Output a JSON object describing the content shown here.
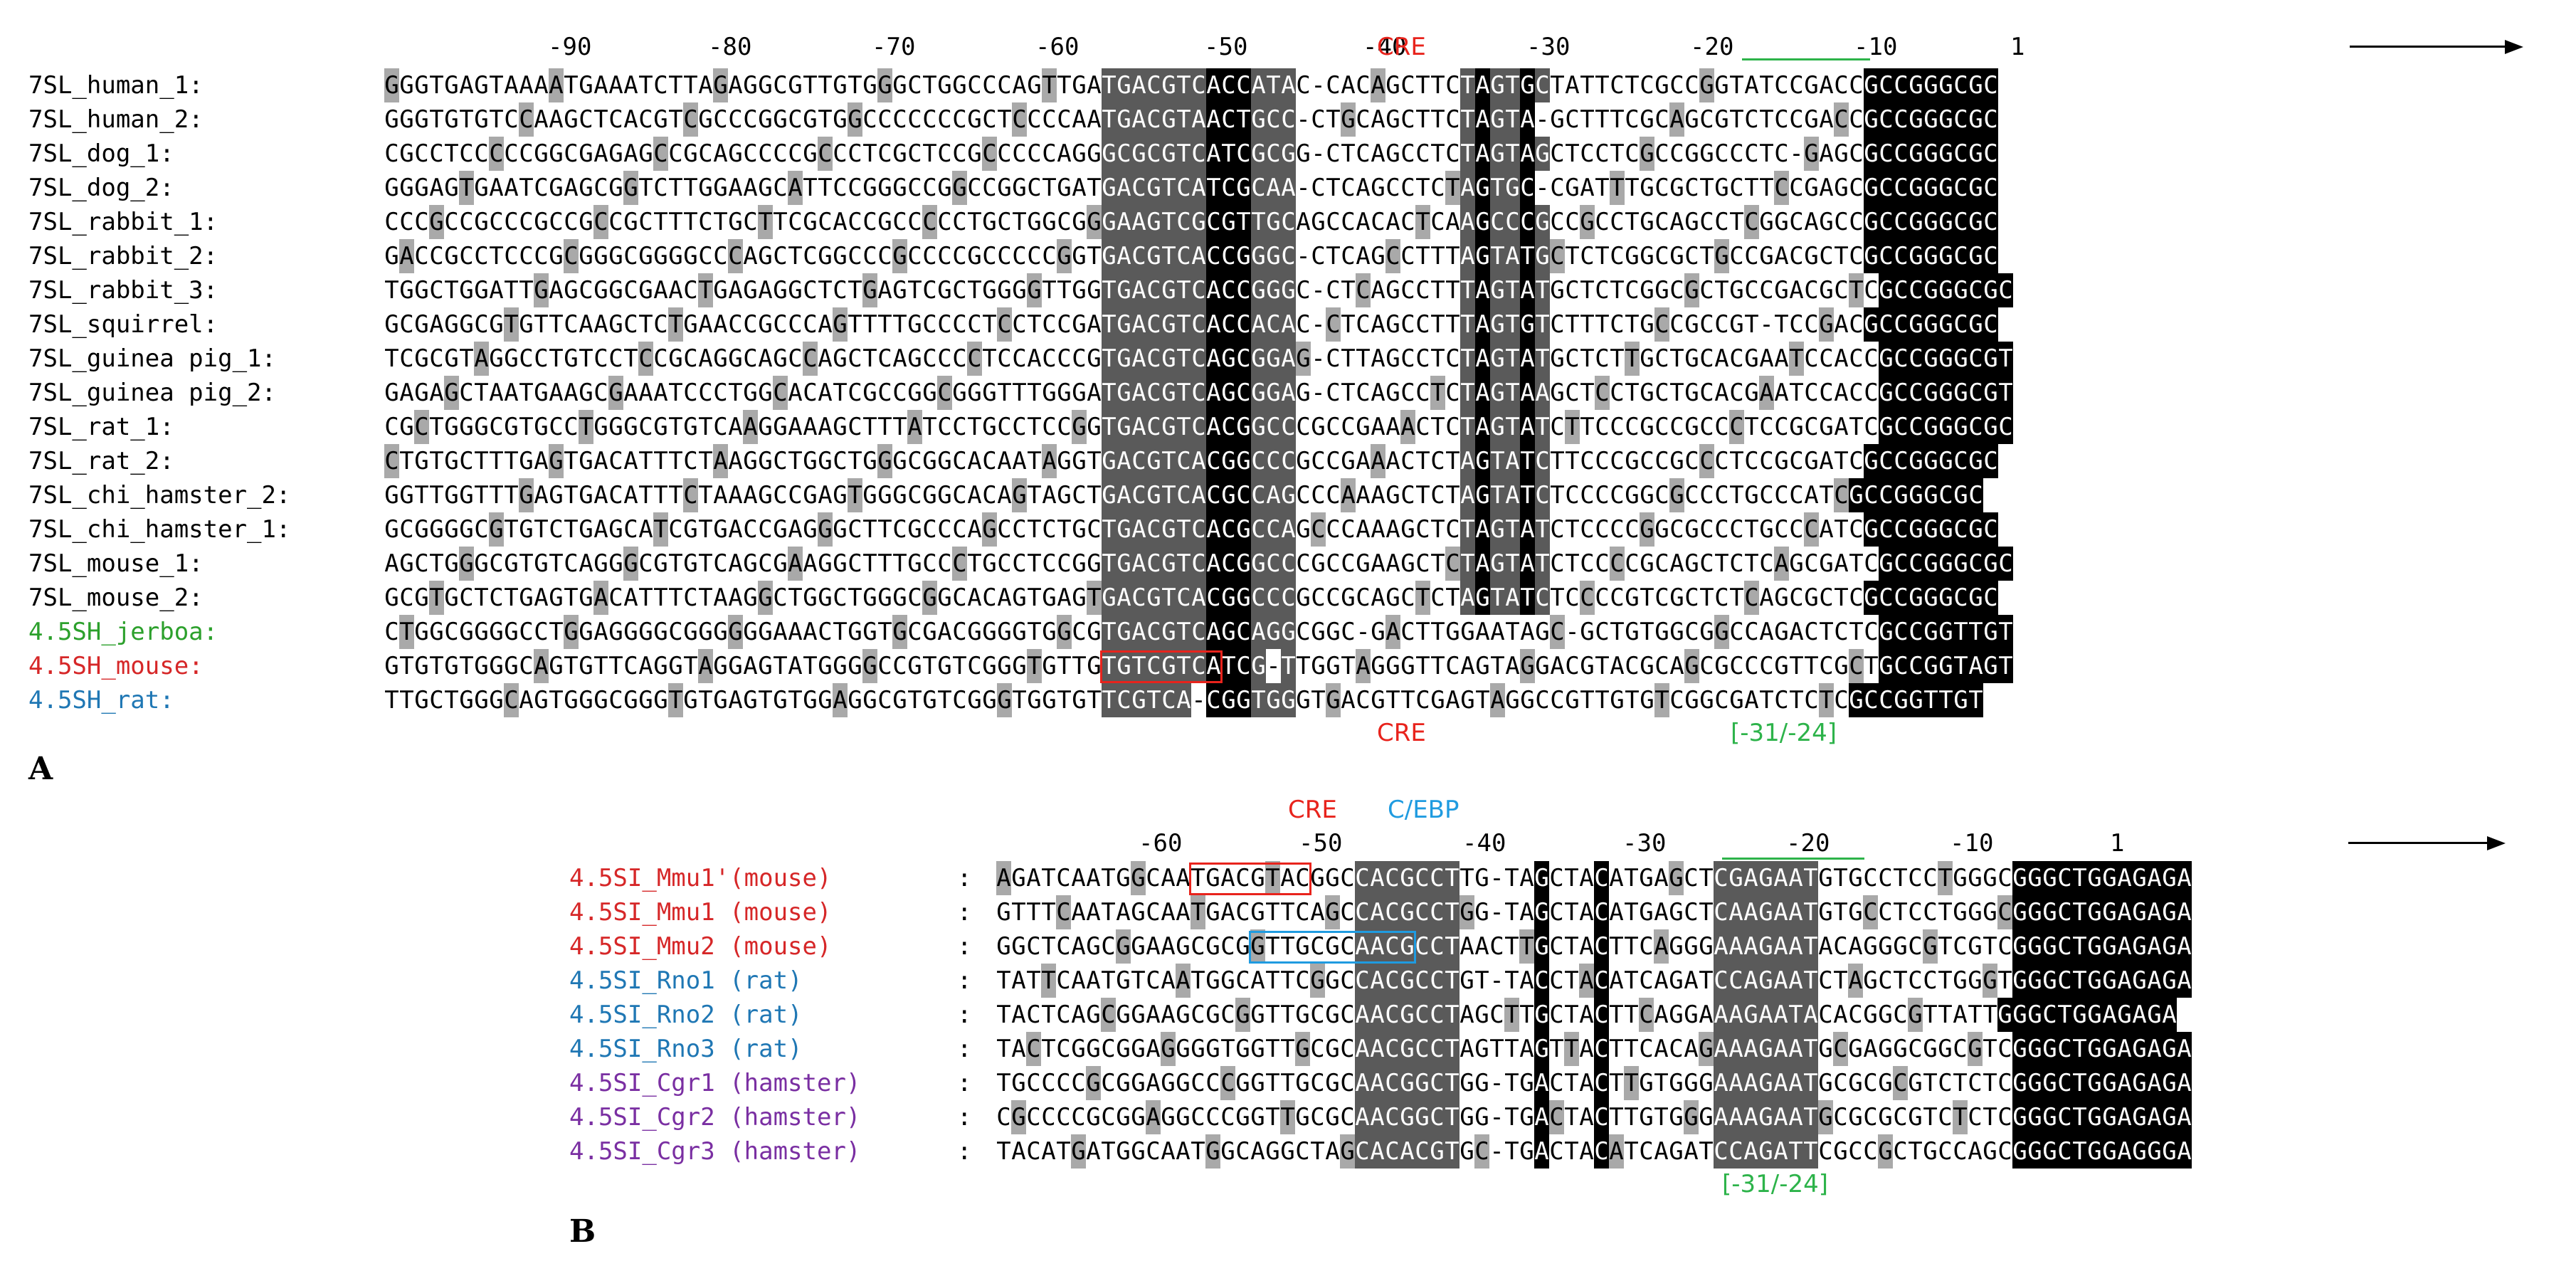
{
  "colors": {
    "human": "#000000",
    "jerboa": "#2ca02c",
    "mouse": "#d62728",
    "rat": "#1f77b4",
    "hamster": "#7a2fa2",
    "cre": "#e8231c",
    "cebp": "#1f9be0",
    "box_green": "#2db34a"
  },
  "panelA": {
    "letter": "A",
    "ticks": [
      "-90",
      "-80",
      "-70",
      "-60",
      "-50",
      "-40",
      "-30",
      "-20",
      "-10",
      "1"
    ],
    "cre_top": "CRE",
    "cre_bottom": "CRE",
    "bracket": "[-31/-24]",
    "rows": [
      {
        "label": "7SL_human_1:",
        "color": "human",
        "seq": "GGGTGAGTAAAATGAAATCTTAGAGGCGTTGTGGGCTGGCCCAGTTGATGACGTCACCATAC-CACAGCTTCTAGTGCTATTCTCGCCGGTATCCGACCGCCGGGCGC"
      },
      {
        "label": "7SL_human_2:",
        "color": "human",
        "seq": "GGGTGTGTCCAAGCTCACGTCGCCCGGCGTGGCCCCCCCGCTCCCCAATGACGTAACTGCC-CTGCAGCTTCTAGTA-GCTTTCGCAGCGTCTCCGACCGCCGGGCGC"
      },
      {
        "label": "7SL_dog_1:",
        "color": "human",
        "seq": "CGCCTCCCCCGGCGAGAGCCGCAGCCCCGCCCTCGCTCCGCCCCCAGGGCGCGTCATCGCGG-CTCAGCCTCTAGTAGCTCCTCGCCGGCCCTC-GAGCGCCGGGCGC"
      },
      {
        "label": "7SL_dog_2:",
        "color": "human",
        "seq": "GGGAGTGAATCGAGCGGTCTTGGAAGCATTCCGGGCCGGCCGGCTGATGACGTCATCGCAA-CTCAGCCTCTAGTGC-CGATTTGCGCTGCTTCCGAGCGCCGGGCGC"
      },
      {
        "label": "7SL_rabbit_1:",
        "color": "human",
        "seq": "CCCGCCGCCCGCCGCCGCTTTCTGCTTCGCACCGCCCCCTGCTGGCGGGAAGTCGCGTTGCAGCCACACTCAAGCCCGCCGCCTGCAGCCTCGGCAGCCGCCGGGCGC"
      },
      {
        "label": "7SL_rabbit_2:",
        "color": "human",
        "seq": "GACCGCCTCCCGCGGGCGGGGCCCAGCTCGGCCCGCCCCGCCCCCGGTGACGTCACCGGGC-CTCAGCCTTTAGTATGCTCTCGGCGCTGCCGACGCTCGCCGGGCGC"
      },
      {
        "label": "7SL_rabbit_3:",
        "color": "human",
        "seq": "TGGCTGGATTGAGCGGCGAACTGAGAGGCTCTGAGTCGCTGGGGTTGGTGACGTCACCGGGC-CTCAGCCTTTAGTATGCTCTCGGCGCTGCCGACGCTCGCCGGGCGC"
      },
      {
        "label": "7SL_squirrel:",
        "color": "human",
        "seq": "GCGAGGCGTGTTCAAGCTCTGAACCGCCCAGTTTTGCCCCTCCTCCGATGACGTCACCACAC-CTCAGCCTTTAGTGTCTTTCTGCCGCCGT-TCCGACGCCGGGCGC"
      },
      {
        "label": "7SL_guinea pig_1:",
        "color": "human",
        "seq": "TCGCGTAGGCCTGTCCTCCGCAGGCAGCCAGCTCAGCCCCTCCACCCGTGACGTCAGCGGAG-CTTAGCCTCTAGTATGCTCTTGCTGCACGAATCCACCGCCGGGCGT"
      },
      {
        "label": "7SL_guinea pig_2:",
        "color": "human",
        "seq": "GAGAGCTAATGAAGCGAAATCCCTGGCACATCGCCGGCGGGTTTGGGATGACGTCAGCGGAG-CTCAGCCTCTAGTAAGCTCCTGCTGCACGAATCCACCGCCGGGCGT"
      },
      {
        "label": "7SL_rat_1:",
        "color": "human",
        "seq": "CGCTGGGCGTGCCTGGGCGTGTCAAGGAAAGCTTTATCCTGCCTCCGGTGACGTCACGGCCCGCCGAAACTCTAGTATCTTCCCGCCGCCCTCCGCGATCGCCGGGCGC"
      },
      {
        "label": "7SL_rat_2:",
        "color": "human",
        "seq": "CTGTGCTTTGAGTGACATTTCTAAGGCTGGCTGGGCGGCACAATAGGTGACGTCACGGCCCGCCGAAACTCTAGTATCTTCCCGCCGCCCTCCGCGATCGCCGGGCGC"
      },
      {
        "label": "7SL_chi_hamster_2:",
        "color": "human",
        "seq": "GGTTGGTTTGAGTGACATTTCTAAAGCCGAGTGGGCGGCACAGTAGCTGACGTCACGCCAGCCCAAAGCTCTAGTATCTCCCCGGCGCCCTGCCCATCGCCGGGCGC"
      },
      {
        "label": "7SL_chi_hamster_1:",
        "color": "human",
        "seq": "GCGGGGCGTGTCTGAGCATCGTGACCGAGGGCTTCGCCCAGCCTCTGCTGACGTCACGCCAGCCCAAAGCTCTAGTATCTCCCCGGCGCCCTGCCCATCGCCGGGCGC"
      },
      {
        "label": "7SL_mouse_1:",
        "color": "human",
        "seq": "AGCTGGGCGTGTCAGGGCGTGTCAGCGAAGGCTTTGCCCTGCCTCCGGTGACGTCACGGCCCGCCGAAGCTCTAGTATCTCCCCGCAGCTCTCAGCGATCGCCGGGCGC"
      },
      {
        "label": "7SL_mouse_2:",
        "color": "human",
        "seq": "GCGTGCTCTGAGTGACATTTCTAAGGCTGGCTGGGCGGCACAGTGAGTGACGTCACGGCCCGCCGCAGCTCTAGTATCTCCCCGTCGCTCTCAGCGCTCGCCGGGCGC"
      },
      {
        "label": "4.5SH_jerboa:",
        "color": "jerboa",
        "seq": "CTGGCGGGGCCTGGAGGGGCGGGGGGAAACTGGTGCGACGGGGTGGCGTGACGTCAGCAGGCGGC-GACTTGGAATAGC-GCTGTGGCGGCCAGACTCTCGCCGGTTGT"
      },
      {
        "label": "4.5SH_mouse:",
        "color": "mouse",
        "seq": "GTGTGTGGGCAGTGTTCAGGTAGGAGTATGGGGCCGTGTCGGGTGTTGTGTCGTCATCG-TTGGTAGGGTTCAGTAGGACGTACGCAGCGCCCGTTCGCTGCCGGTAGT"
      },
      {
        "label": "4.5SH_rat:",
        "color": "rat",
        "seq": "TTGCTGGGCAGTGGGCGGGTGTGAGTGTGGAGGCGTGTCGGGTGGTGTTCGTCA-CGGTGGGTGACGTTCGAGTAGGCCGTTGTGTCGGCGATCTCTCGCCGGTTGT"
      }
    ]
  },
  "panelB": {
    "letter": "B",
    "ticks": [
      "-60",
      "-50",
      "-40",
      "-30",
      "-20",
      "-10",
      "1"
    ],
    "cre_label": "CRE",
    "cebp_label": "C/EBP",
    "bracket": "[-31/-24]",
    "rows": [
      {
        "label": "4.5SI_Mmu1'(mouse)",
        "color": "mouse",
        "seq": "AGATCAATGGCAATGACGTACGGCCACGCCTTG-TAGCTACATGAGCTCGAGAATGTGCCTCCTGGGCGGGCTGGAGAGA"
      },
      {
        "label": "4.5SI_Mmu1 (mouse)",
        "color": "mouse",
        "seq": "GTTTCAATAGCAATGACGTTCAGCCACGCCTGG-TAGCTACATGAGCTCAAGAATGTGCCTCCTGGGCGGGCTGGAGAGA"
      },
      {
        "label": "4.5SI_Mmu2 (mouse)",
        "color": "mouse",
        "seq": "GGCTCAGCGGAAGCGCGGTTGCGCAACGCCTAACTTGCTACTTCAGGGAAAGAATACAGGGCGTCGTCGGGCTGGAGAGA"
      },
      {
        "label": "4.5SI_Rno1 (rat)",
        "color": "rat",
        "seq": "TATTCAATGTCAATGGCATTCGGCCACGCCTGT-TACCTACATCAGATCCAGAATCTAGCTCCTGGGTGGGCTGGAGAGA"
      },
      {
        "label": "4.5SI_Rno2 (rat)",
        "color": "rat",
        "seq": "TACTCAGCGGAAGCGCGGTTGCGCAACGCCTAGCTTGCTACTTCAGGAAAGAATACACGGCGTTATTGGGCTGGAGAGA"
      },
      {
        "label": "4.5SI_Rno3 (rat)",
        "color": "rat",
        "seq": "TACTCGGCGGAGGGGTGGTTGCGCAACGCCTAGTTAGTTACTTCACAGAAAGAATGCGAGGCGGCGTCGGGCTGGAGAGA"
      },
      {
        "label": "4.5SI_Cgr1 (hamster)",
        "color": "hamster",
        "seq": "TGCCCCGCGGAGGCCCGGTTGCGCAACGGCTGG-TGACTACTTGTGGGAAAGAATGCGCGCGTCTCTCGGGCTGGAGAGA"
      },
      {
        "label": "4.5SI_Cgr2 (hamster)",
        "color": "hamster",
        "seq": "CGCCCCGCGGAGGCCCGGTTGCGCAACGGCTGG-TGACTACTTGTGGGAAAGAATGCGCGCGTCTCTCGGGCTGGAGAGA"
      },
      {
        "label": "4.5SI_Cgr3 (hamster)",
        "color": "hamster",
        "seq": "TACATGATGGCAATGGCAGGCTAGCACACGTGC-TGACTACATCAGATCCAGATTCGCCGCTGCCAGCGGGCTGGAGGGA"
      }
    ]
  }
}
